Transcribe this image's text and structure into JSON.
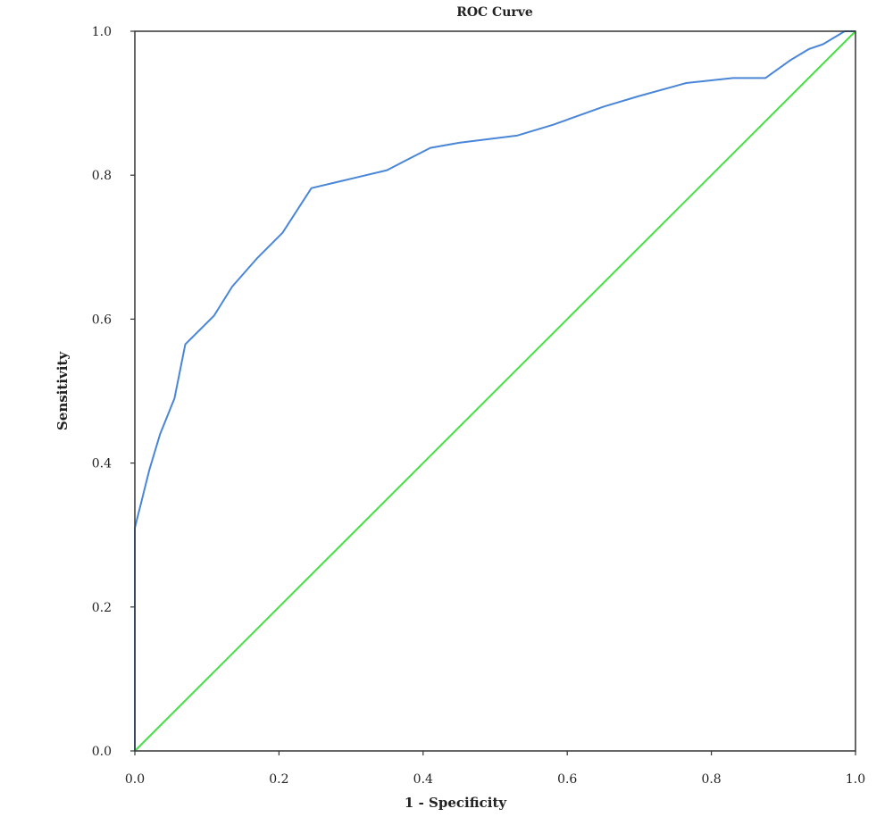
{
  "chart_data": {
    "type": "line",
    "title": "ROC Curve",
    "xlabel": "1 - Specificity",
    "ylabel": "Sensitivity",
    "xlim": [
      0,
      1
    ],
    "ylim": [
      0,
      1
    ],
    "x_ticks": [
      "0.0",
      "0.2",
      "0.4",
      "0.6",
      "0.8",
      "1.0"
    ],
    "y_ticks": [
      "0.0",
      "0.2",
      "0.4",
      "0.6",
      "0.8",
      "1.0"
    ],
    "grid": false,
    "legend": "none",
    "series": [
      {
        "color": "#4a86d8",
        "points": [
          [
            0.0,
            0.0
          ],
          [
            0.0,
            0.31
          ],
          [
            0.01,
            0.35
          ],
          [
            0.02,
            0.39
          ],
          [
            0.035,
            0.44
          ],
          [
            0.055,
            0.49
          ],
          [
            0.07,
            0.565
          ],
          [
            0.11,
            0.605
          ],
          [
            0.135,
            0.645
          ],
          [
            0.17,
            0.685
          ],
          [
            0.205,
            0.72
          ],
          [
            0.245,
            0.782
          ],
          [
            0.3,
            0.795
          ],
          [
            0.35,
            0.807
          ],
          [
            0.375,
            0.82
          ],
          [
            0.41,
            0.838
          ],
          [
            0.45,
            0.845
          ],
          [
            0.53,
            0.855
          ],
          [
            0.58,
            0.87
          ],
          [
            0.65,
            0.895
          ],
          [
            0.7,
            0.91
          ],
          [
            0.765,
            0.928
          ],
          [
            0.83,
            0.935
          ],
          [
            0.875,
            0.935
          ],
          [
            0.91,
            0.96
          ],
          [
            0.935,
            0.975
          ],
          [
            0.955,
            0.982
          ],
          [
            0.985,
            1.0
          ],
          [
            1.0,
            1.0
          ]
        ]
      },
      {
        "color": "#44e044",
        "points": [
          [
            0.0,
            0.0
          ],
          [
            1.0,
            1.0
          ]
        ]
      }
    ]
  }
}
